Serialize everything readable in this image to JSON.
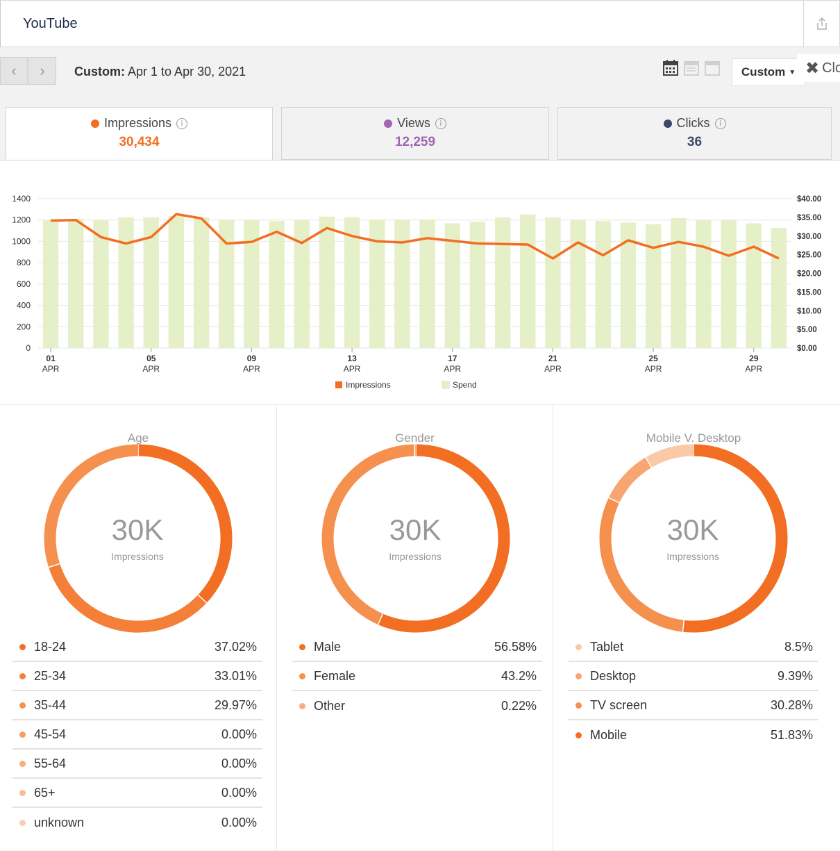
{
  "header": {
    "title": "YouTube",
    "share_icon": "share-icon"
  },
  "toolbar": {
    "date_prefix": "Custom:",
    "date_range": "Apr 1 to Apr 30, 2021",
    "custom_label": "Custom",
    "close_label": "Clo"
  },
  "metrics": [
    {
      "label": "Impressions",
      "value": "30,434",
      "color": "#f26e22"
    },
    {
      "label": "Views",
      "value": "12,259",
      "color": "#a066b3"
    },
    {
      "label": "Clicks",
      "value": "36",
      "color": "#3b4a6b"
    }
  ],
  "chart_data": {
    "type": "bar",
    "x": [
      "01 APR",
      "02 APR",
      "03 APR",
      "04 APR",
      "05 APR",
      "06 APR",
      "07 APR",
      "08 APR",
      "09 APR",
      "10 APR",
      "11 APR",
      "12 APR",
      "13 APR",
      "14 APR",
      "15 APR",
      "16 APR",
      "17 APR",
      "18 APR",
      "19 APR",
      "20 APR",
      "21 APR",
      "22 APR",
      "23 APR",
      "24 APR",
      "25 APR",
      "26 APR",
      "27 APR",
      "28 APR",
      "29 APR",
      "30 APR"
    ],
    "tick_labels": [
      {
        "day": "01",
        "month": "APR",
        "index": 0
      },
      {
        "day": "05",
        "month": "APR",
        "index": 4
      },
      {
        "day": "09",
        "month": "APR",
        "index": 8
      },
      {
        "day": "13",
        "month": "APR",
        "index": 12
      },
      {
        "day": "17",
        "month": "APR",
        "index": 16
      },
      {
        "day": "21",
        "month": "APR",
        "index": 20
      },
      {
        "day": "25",
        "month": "APR",
        "index": 24
      },
      {
        "day": "29",
        "month": "APR",
        "index": 28
      }
    ],
    "left_ticks": [
      "0",
      "200",
      "400",
      "600",
      "800",
      "1000",
      "1200",
      "1400"
    ],
    "right_ticks": [
      "$0.00",
      "$5.00",
      "$10.00",
      "$15.00",
      "$20.00",
      "$25.00",
      "$30.00",
      "$35.00",
      "$40.00"
    ],
    "left_ylim": [
      0,
      1400
    ],
    "right_ylim": [
      0,
      40
    ],
    "series": [
      {
        "name": "Impressions",
        "type": "line",
        "axis": "left",
        "color": "#f26e22",
        "values": [
          1195,
          1200,
          1040,
          980,
          1040,
          1255,
          1215,
          980,
          995,
          1090,
          985,
          1125,
          1050,
          1000,
          990,
          1030,
          1005,
          980,
          975,
          970,
          840,
          990,
          870,
          1010,
          940,
          995,
          950,
          865,
          950,
          840
        ]
      },
      {
        "name": "Spend",
        "type": "bar",
        "axis": "right",
        "color": "#e6f0c8",
        "values": [
          34.2,
          34.6,
          34.2,
          35.0,
          35.0,
          35.4,
          35.0,
          34.4,
          34.2,
          34.0,
          34.2,
          35.2,
          35.0,
          34.4,
          34.4,
          34.4,
          33.4,
          33.8,
          35.0,
          35.8,
          35.0,
          34.2,
          34.0,
          33.6,
          33.2,
          34.8,
          34.2,
          34.2,
          33.4,
          32.2
        ]
      }
    ],
    "legend_placement": "bottom",
    "grid": true
  },
  "donuts": [
    {
      "title": "Age",
      "center_value": "30K",
      "center_label": "Impressions",
      "segments": [
        {
          "name": "18-24",
          "pct_label": "37.02%",
          "value": 37.02,
          "color": "#f26e22"
        },
        {
          "name": "25-34",
          "pct_label": "33.01%",
          "value": 33.01,
          "color": "#f47f38"
        },
        {
          "name": "35-44",
          "pct_label": "29.97%",
          "value": 29.97,
          "color": "#f5904f"
        },
        {
          "name": "45-54",
          "pct_label": "0.00%",
          "value": 0,
          "color": "#f69f66"
        },
        {
          "name": "55-64",
          "pct_label": "0.00%",
          "value": 0,
          "color": "#f7ae7e"
        },
        {
          "name": "65+",
          "pct_label": "0.00%",
          "value": 0,
          "color": "#f8bd96"
        },
        {
          "name": "unknown",
          "pct_label": "0.00%",
          "value": 0,
          "color": "#facdb0"
        }
      ]
    },
    {
      "title": "Gender",
      "center_value": "30K",
      "center_label": "Impressions",
      "segments": [
        {
          "name": "Male",
          "pct_label": "56.58%",
          "value": 56.58,
          "color": "#f26e22"
        },
        {
          "name": "Female",
          "pct_label": "43.2%",
          "value": 43.2,
          "color": "#f5904f"
        },
        {
          "name": "Other",
          "pct_label": "0.22%",
          "value": 0.22,
          "color": "#f7ae7e"
        }
      ]
    },
    {
      "title": "Mobile V. Desktop",
      "center_value": "30K",
      "center_label": "Impressions",
      "segments": [
        {
          "name": "Tablet",
          "pct_label": "8.5%",
          "value": 8.5,
          "color": "#fac9a6"
        },
        {
          "name": "Desktop",
          "pct_label": "9.39%",
          "value": 9.39,
          "color": "#f7a672"
        },
        {
          "name": "TV screen",
          "pct_label": "30.28%",
          "value": 30.28,
          "color": "#f5904f"
        },
        {
          "name": "Mobile",
          "pct_label": "51.83%",
          "value": 51.83,
          "color": "#f26e22"
        }
      ],
      "draw_order": [
        "Mobile",
        "TV screen",
        "Desktop",
        "Tablet"
      ]
    }
  ]
}
